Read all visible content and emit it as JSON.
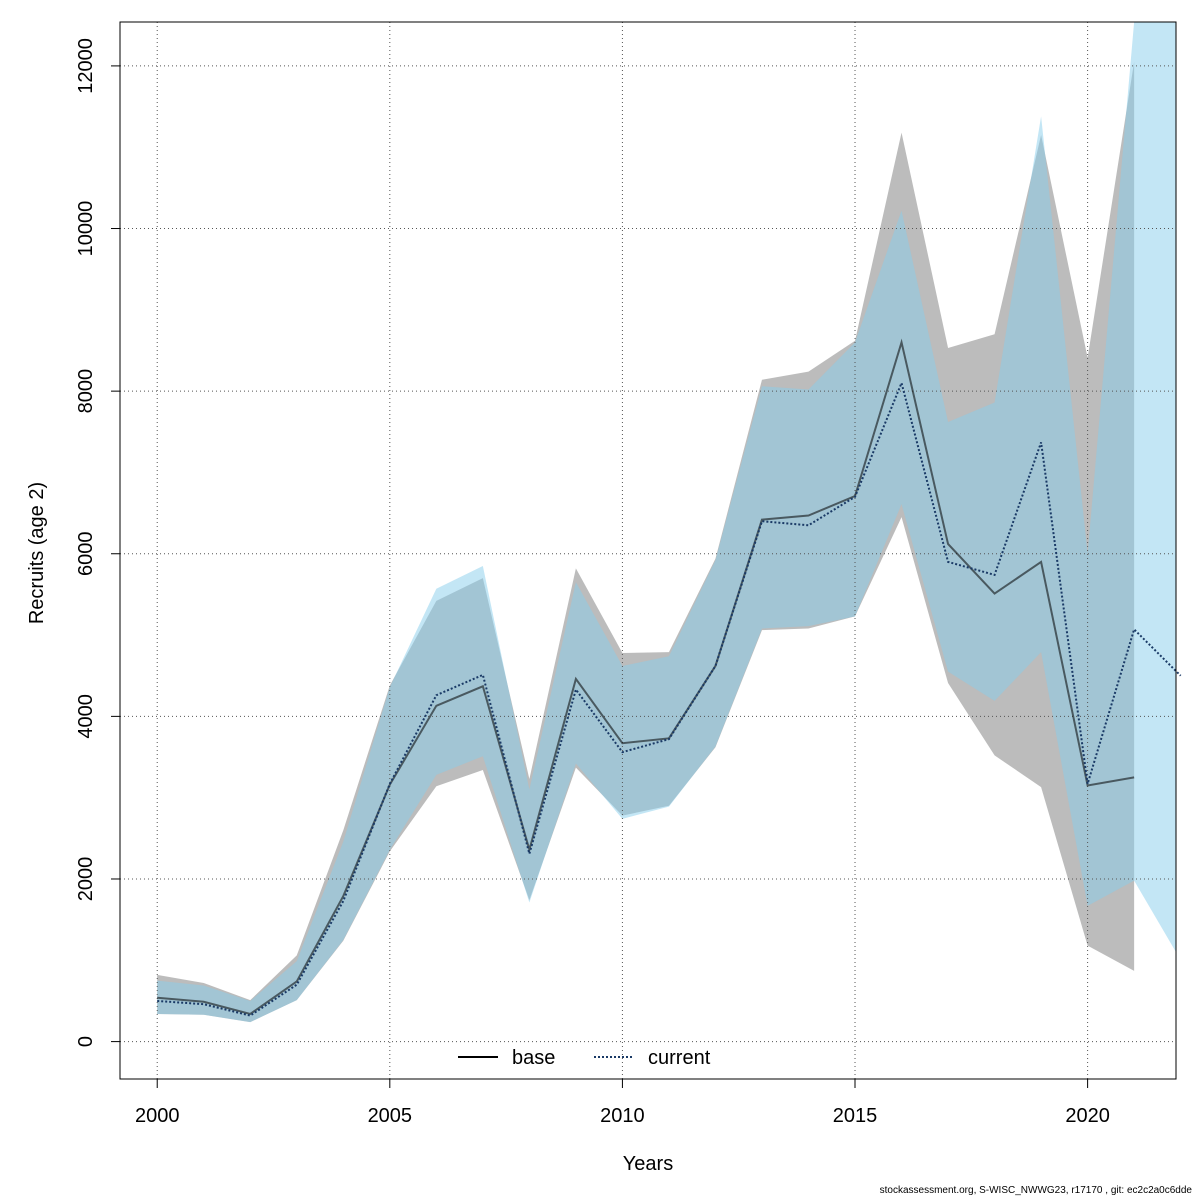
{
  "chart_data": {
    "type": "line",
    "xlabel": "Years",
    "ylabel": "Recruits (age 2)",
    "xlim": [
      1999.2,
      2021.9
    ],
    "ylim": [
      -460,
      12540
    ],
    "xticks": [
      2000,
      2005,
      2010,
      2015,
      2020
    ],
    "yticks": [
      0,
      2000,
      4000,
      6000,
      8000,
      10000,
      12000
    ],
    "grid": true,
    "legend_placement": "bottom-center",
    "series": [
      {
        "name": "base",
        "color": "#000000",
        "band_color": "#a6a6a6",
        "line_style": "solid",
        "x": [
          2000,
          2001,
          2002,
          2003,
          2004,
          2005,
          2006,
          2007,
          2008,
          2009,
          2010,
          2011,
          2012,
          2013,
          2014,
          2015,
          2016,
          2017,
          2018,
          2019,
          2020,
          2021
        ],
        "values": [
          540,
          490,
          340,
          740,
          1790,
          3160,
          4130,
          4370,
          2360,
          4460,
          3670,
          3730,
          4620,
          6420,
          6470,
          6710,
          8600,
          6120,
          5510,
          5900,
          3150,
          3250
        ],
        "upper": [
          820,
          720,
          510,
          1060,
          2600,
          4380,
          5420,
          5700,
          3230,
          5820,
          4780,
          4790,
          5940,
          8140,
          8240,
          8620,
          11180,
          8530,
          8700,
          11150,
          8410,
          12050
        ],
        "lower": [
          340,
          330,
          240,
          510,
          1240,
          2340,
          3140,
          3340,
          1740,
          3370,
          2780,
          2900,
          3620,
          5060,
          5080,
          5230,
          6450,
          4410,
          3520,
          3130,
          1180,
          870
        ]
      },
      {
        "name": "current",
        "color": "#1a3a66",
        "band_color": "#87ceeb",
        "line_style": "dotted",
        "x": [
          2000,
          2001,
          2002,
          2003,
          2004,
          2005,
          2006,
          2007,
          2008,
          2009,
          2010,
          2011,
          2012,
          2013,
          2014,
          2015,
          2016,
          2017,
          2018,
          2019,
          2020,
          2021,
          2022
        ],
        "values": [
          500,
          460,
          320,
          700,
          1730,
          3170,
          4260,
          4510,
          2310,
          4330,
          3560,
          3720,
          4620,
          6400,
          6350,
          6700,
          8100,
          5900,
          5740,
          7370,
          3170,
          5070,
          4500
        ],
        "upper": [
          750,
          690,
          500,
          990,
          2460,
          4360,
          5570,
          5850,
          3100,
          5650,
          4620,
          4740,
          5920,
          8060,
          8020,
          8600,
          10220,
          7620,
          7860,
          11380,
          6000,
          12540,
          12540
        ],
        "lower": [
          340,
          330,
          240,
          510,
          1250,
          2360,
          3280,
          3510,
          1710,
          3420,
          2740,
          2890,
          3630,
          5080,
          5110,
          5230,
          6610,
          4550,
          4190,
          4790,
          1670,
          1980,
          1100
        ]
      }
    ]
  },
  "footer": "stockassessment.org, S-WISC_NWWG23, r17170 , git: ec2c2a0c6dde"
}
